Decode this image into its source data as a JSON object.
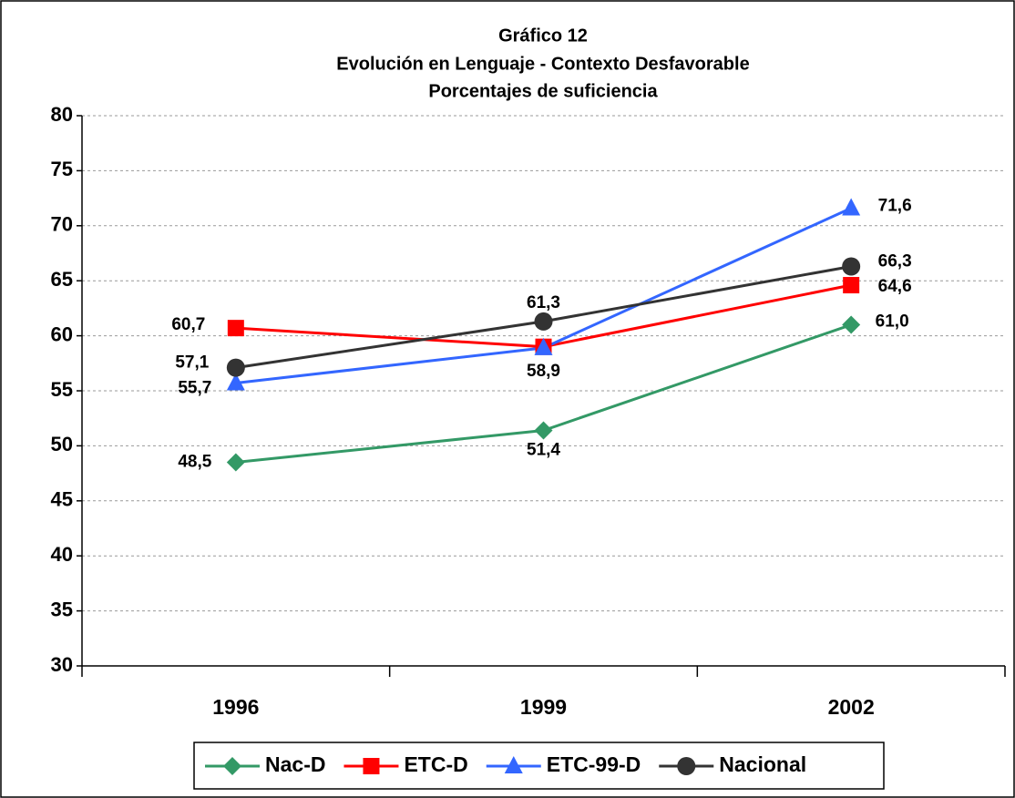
{
  "chart_data": {
    "type": "line",
    "title": "Gráfico 12",
    "subtitle": [
      "Evolución en Lenguaje - Contexto Desfavorable",
      "Porcentajes de suficiencia"
    ],
    "categories": [
      "1996",
      "1999",
      "2002"
    ],
    "series": [
      {
        "name": "Nac-D",
        "color": "#339966",
        "marker": "diamond",
        "values": [
          48.5,
          51.4,
          61.0
        ],
        "value_labels": [
          "48,5",
          "51,4",
          "61,0"
        ]
      },
      {
        "name": "ETC-D",
        "color": "#ff0000",
        "marker": "square",
        "values": [
          60.7,
          59.0,
          64.6
        ],
        "value_labels": [
          "60,7",
          null,
          "64,6"
        ]
      },
      {
        "name": "ETC-99-D",
        "color": "#3366ff",
        "marker": "triangle",
        "values": [
          55.7,
          58.9,
          71.6
        ],
        "value_labels": [
          "55,7",
          "58,9",
          "71,6"
        ]
      },
      {
        "name": "Nacional",
        "color": "#333333",
        "marker": "circle",
        "values": [
          57.1,
          61.3,
          66.3
        ],
        "value_labels": [
          "57,1",
          "61,3",
          "66,3"
        ]
      }
    ],
    "ylim": [
      30,
      80
    ],
    "yticks": [
      30,
      35,
      40,
      45,
      50,
      55,
      60,
      65,
      70,
      75,
      80
    ],
    "grid": true,
    "legend": "bottom"
  }
}
